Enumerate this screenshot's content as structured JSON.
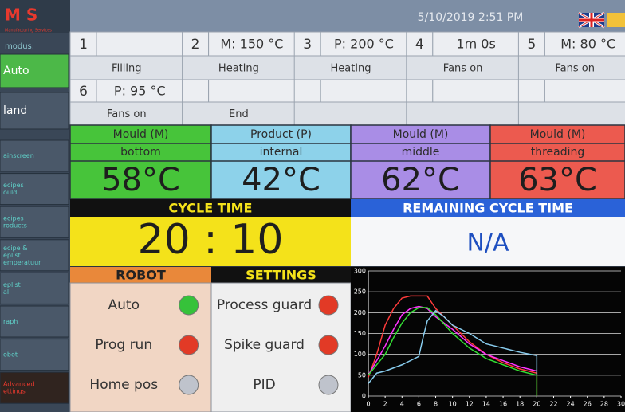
{
  "sidebar": {
    "logo": "M S",
    "logo_sub": "Manufacturing Services",
    "mode_label": "modus:",
    "menu": [
      [
        "Auto"
      ],
      [
        "land"
      ],
      [
        "ainscreen"
      ],
      [
        "ecipes",
        "ould"
      ],
      [
        "ecipes",
        "roducts"
      ],
      [
        "ecipe &",
        "eplist",
        "emperatuur"
      ],
      [
        "eplist",
        "al"
      ],
      [
        "raph"
      ],
      [
        "obot"
      ],
      [
        "Advanced",
        "ettings"
      ]
    ]
  },
  "status": {
    "datetime": "5/10/2019 2:51 PM"
  },
  "steps": [
    {
      "num": 1,
      "label": "Filling"
    },
    {
      "num": 2,
      "value": "M: 150 °C",
      "label": "Heating"
    },
    {
      "num": 3,
      "value": "P: 200 °C",
      "label": "Heating"
    },
    {
      "num": 4,
      "value": "1m 0s",
      "label": "Fans on"
    },
    {
      "num": 5,
      "value": "M: 80 °C",
      "label": "Fans on"
    },
    {
      "num": 6,
      "value": "P: 95 °C",
      "label": "Fans on"
    },
    {
      "label": "End"
    }
  ],
  "temperatures": [
    {
      "name": "Mould (M)",
      "position": "bottom",
      "value": "58°C",
      "color": "#47c43a"
    },
    {
      "name": "Product (P)",
      "position": "internal",
      "value": "42°C",
      "color": "#8dd2ea"
    },
    {
      "name": "Mould (M)",
      "position": "middle",
      "value": "62°C",
      "color": "#a98de6"
    },
    {
      "name": "Mould (M)",
      "position": "threading",
      "value": "63°C",
      "color": "#ec5a4f"
    }
  ],
  "cycle_time": {
    "title": "CYCLE TIME",
    "value": "20 : 10"
  },
  "remaining_cycle_time": {
    "title": "REMAINING CYCLE TIME",
    "value": "N/A"
  },
  "robot": {
    "title": "ROBOT",
    "items": [
      {
        "label": "Auto",
        "color": "#36c23a"
      },
      {
        "label": "Prog run",
        "color": "#e23a26"
      },
      {
        "label": "Home pos",
        "color": "#bfc3cc"
      }
    ]
  },
  "settings": {
    "title": "SETTINGS",
    "items": [
      {
        "label": "Process guard",
        "color": "#e23a26"
      },
      {
        "label": "Spike guard",
        "color": "#e23a26"
      },
      {
        "label": "PID",
        "color": "#bfc3cc"
      }
    ]
  },
  "graph": {
    "type": "line",
    "xlim": [
      0,
      30
    ],
    "ylim": [
      0,
      300
    ],
    "xticks": [
      0,
      2,
      4,
      6,
      8,
      10,
      12,
      14,
      16,
      18,
      20,
      22,
      24,
      26,
      28,
      30
    ],
    "yticks": [
      0,
      50,
      100,
      150,
      200,
      250,
      300
    ],
    "grid": true,
    "series": [
      {
        "color": "#ff3b3b",
        "x": [
          0,
          1,
          2,
          3,
          4,
          5,
          7,
          7.5,
          8,
          10,
          12,
          14,
          16,
          18,
          20,
          20
        ],
        "values": [
          45,
          100,
          170,
          210,
          235,
          240,
          240,
          225,
          210,
          170,
          130,
          100,
          80,
          65,
          55,
          0
        ]
      },
      {
        "color": "#ff33ff",
        "x": [
          0,
          2,
          3,
          4,
          5,
          6,
          7,
          8,
          10,
          12,
          14,
          16,
          18,
          20
        ],
        "values": [
          50,
          120,
          160,
          195,
          210,
          215,
          210,
          190,
          160,
          125,
          100,
          85,
          70,
          60
        ]
      },
      {
        "color": "#33dd33",
        "x": [
          0,
          2,
          3,
          4,
          5,
          6,
          7,
          8,
          10,
          12,
          14,
          16,
          18,
          20,
          20
        ],
        "values": [
          50,
          100,
          140,
          175,
          200,
          212,
          212,
          195,
          150,
          115,
          90,
          75,
          60,
          50,
          0
        ]
      },
      {
        "color": "#88ccee",
        "x": [
          0,
          1,
          2,
          4,
          6,
          6.5,
          7,
          8,
          9,
          10,
          12,
          14,
          16,
          18,
          20,
          20
        ],
        "values": [
          30,
          55,
          60,
          75,
          95,
          140,
          180,
          205,
          190,
          170,
          150,
          125,
          115,
          105,
          97,
          50
        ]
      }
    ]
  }
}
